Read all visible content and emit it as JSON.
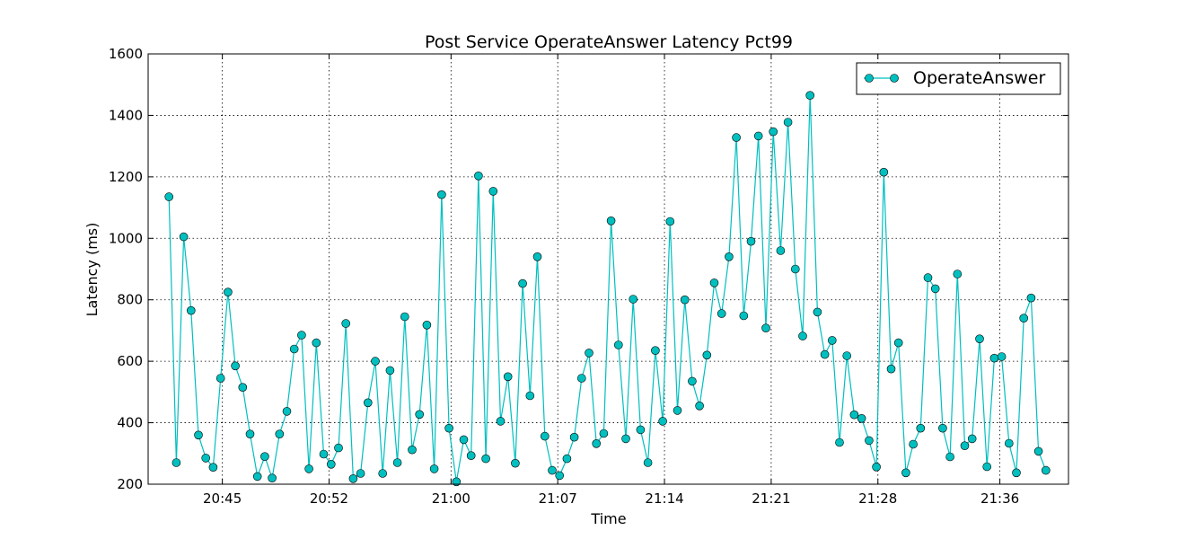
{
  "chart_data": {
    "type": "line",
    "title": "Post Service OperateAnswer Latency Pct99",
    "xlabel": "Time",
    "ylabel": "Latency (ms)",
    "x_ticks": [
      "20:45",
      "20:52",
      "21:00",
      "21:07",
      "21:14",
      "21:21",
      "21:28",
      "21:36"
    ],
    "y_ticks": [
      "200",
      "400",
      "600",
      "800",
      "1000",
      "1200",
      "1400",
      "1600"
    ],
    "ylim": [
      200,
      1600
    ],
    "x_range": [
      "20:40:08",
      "21:40:30"
    ],
    "grid": true,
    "legend_position": "top-right",
    "line_color": "#00bfbf",
    "x_start": "20:41:30",
    "x_step_seconds": 29,
    "series": [
      {
        "name": "OperateAnswer",
        "values": [
          1135,
          270,
          1005,
          765,
          360,
          285,
          255,
          545,
          825,
          585,
          515,
          363,
          225,
          290,
          220,
          363,
          437,
          640,
          685,
          250,
          660,
          298,
          265,
          318,
          723,
          218,
          235,
          465,
          600,
          235,
          570,
          270,
          745,
          312,
          427,
          718,
          250,
          1142,
          382,
          208,
          345,
          293,
          1203,
          283,
          1153,
          405,
          550,
          268,
          853,
          488,
          940,
          356,
          245,
          228,
          283,
          353,
          545,
          627,
          332,
          365,
          1057,
          653,
          348,
          802,
          377,
          270,
          635,
          405,
          1055,
          440,
          800,
          535,
          455,
          620,
          855,
          755,
          940,
          1328,
          748,
          990,
          1333,
          708,
          1347,
          960,
          1378,
          900,
          682,
          1465,
          760,
          622,
          668,
          336,
          618,
          426,
          414,
          342,
          256,
          1215,
          575,
          660,
          237,
          330,
          382,
          872,
          836,
          382,
          289,
          884,
          325,
          348,
          673,
          257,
          610,
          615,
          333,
          237,
          740,
          806,
          307,
          245
        ]
      }
    ]
  }
}
